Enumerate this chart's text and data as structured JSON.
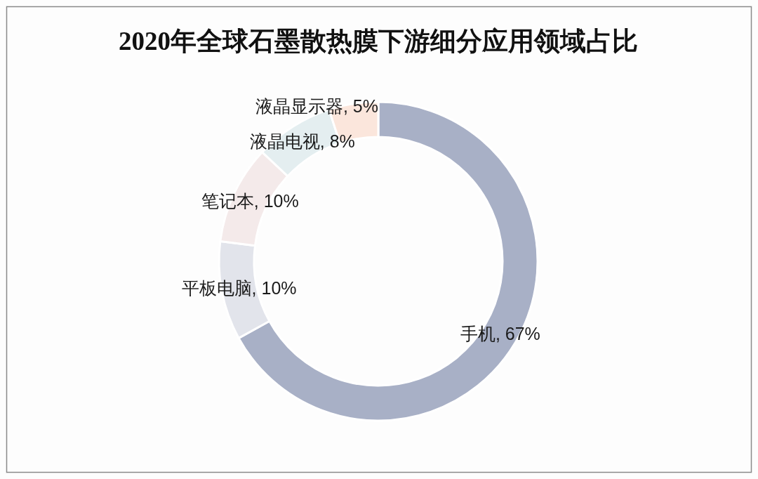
{
  "chart_data": {
    "type": "donut",
    "title": "2020年全球石墨散热膜下游细分应用领域占比",
    "categories": [
      "手机",
      "平板电脑",
      "笔记本",
      "液晶电视",
      "液晶显示器"
    ],
    "values": [
      67,
      10,
      10,
      8,
      5
    ],
    "value_labels": [
      ", 67%",
      ", 10%",
      ", 10%",
      ", 8%",
      ", 5%"
    ],
    "colors": [
      "#a8b0c6",
      "#e2e4eb",
      "#f4eaea",
      "#e4eef0",
      "#fbe6dc"
    ]
  }
}
